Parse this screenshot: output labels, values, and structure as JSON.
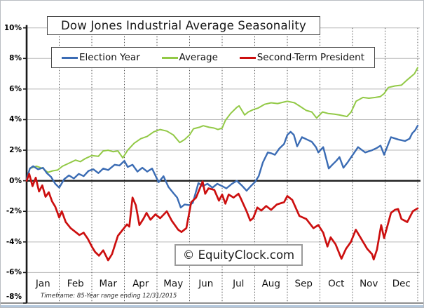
{
  "title": "Dow Jones Industrial Average Seasonality",
  "watermark": "© EquityClock.com",
  "footnote": "Timeframe: 85-Year range ending 12/31/2015",
  "chart_data": {
    "type": "line",
    "title": "Dow Jones Industrial Average Seasonality",
    "xlabel": "",
    "ylabel": "",
    "x_unit": "calendar months, 0 = Jan 1 through 12 = Dec 31",
    "months": [
      "Jan",
      "Feb",
      "Mar",
      "Apr",
      "May",
      "Jun",
      "Jul",
      "Aug",
      "Sep",
      "Oct",
      "Nov",
      "Dec"
    ],
    "ylim": [
      -8,
      10
    ],
    "y_ticks": [
      {
        "label": "10%",
        "value": 10
      },
      {
        "label": "8%",
        "value": 8
      },
      {
        "label": "6%",
        "value": 6
      },
      {
        "label": "4%",
        "value": 4
      },
      {
        "label": "2%",
        "value": 2
      },
      {
        "label": "0%",
        "value": 0
      },
      {
        "label": "-2%",
        "value": -2
      },
      {
        "label": "-4%",
        "value": -4
      },
      {
        "label": "-6%",
        "value": -6
      },
      {
        "label": "-8%",
        "value": -8
      }
    ],
    "grid_values": [
      10,
      8,
      6,
      4,
      2,
      -2,
      -4,
      -6
    ],
    "grid": "solid horizontal gridlines every 2%, dashed vertical gridlines at month boundaries, bold black line at 0%",
    "legend_position": "top",
    "series": [
      {
        "name": "Election Year",
        "color": "#3b6cb4",
        "points": [
          [
            0,
            0.1
          ],
          [
            0.1,
            0.8
          ],
          [
            0.2,
            0.95
          ],
          [
            0.35,
            0.75
          ],
          [
            0.5,
            0.85
          ],
          [
            0.62,
            0.5
          ],
          [
            0.75,
            0.25
          ],
          [
            0.88,
            -0.2
          ],
          [
            1,
            -0.45
          ],
          [
            1.15,
            0.1
          ],
          [
            1.3,
            0.35
          ],
          [
            1.45,
            0.15
          ],
          [
            1.6,
            0.45
          ],
          [
            1.75,
            0.3
          ],
          [
            1.9,
            0.65
          ],
          [
            2.05,
            0.75
          ],
          [
            2.2,
            0.5
          ],
          [
            2.35,
            0.8
          ],
          [
            2.5,
            0.7
          ],
          [
            2.7,
            1.05
          ],
          [
            2.85,
            1.0
          ],
          [
            3,
            1.3
          ],
          [
            3.1,
            0.9
          ],
          [
            3.25,
            1.05
          ],
          [
            3.4,
            0.6
          ],
          [
            3.55,
            0.85
          ],
          [
            3.7,
            0.6
          ],
          [
            3.85,
            0.8
          ],
          [
            3.95,
            0.35
          ],
          [
            4.05,
            -0.1
          ],
          [
            4.2,
            0.3
          ],
          [
            4.35,
            -0.4
          ],
          [
            4.5,
            -0.8
          ],
          [
            4.62,
            -1.1
          ],
          [
            4.73,
            -1.75
          ],
          [
            4.85,
            -1.55
          ],
          [
            5,
            -1.6
          ],
          [
            5.1,
            -1.45
          ],
          [
            5.27,
            -0.15
          ],
          [
            5.4,
            -0.35
          ],
          [
            5.55,
            -0.2
          ],
          [
            5.7,
            -0.45
          ],
          [
            5.85,
            -0.2
          ],
          [
            6,
            -0.35
          ],
          [
            6.13,
            -0.5
          ],
          [
            6.3,
            -0.2
          ],
          [
            6.45,
            0.0
          ],
          [
            6.6,
            -0.3
          ],
          [
            6.75,
            -0.65
          ],
          [
            6.9,
            -0.3
          ],
          [
            7,
            -0.1
          ],
          [
            7.12,
            0.3
          ],
          [
            7.25,
            1.2
          ],
          [
            7.4,
            1.85
          ],
          [
            7.5,
            1.8
          ],
          [
            7.62,
            1.7
          ],
          [
            7.75,
            2.1
          ],
          [
            7.9,
            2.4
          ],
          [
            8,
            3.0
          ],
          [
            8.1,
            3.2
          ],
          [
            8.2,
            3.0
          ],
          [
            8.3,
            2.25
          ],
          [
            8.45,
            2.85
          ],
          [
            8.6,
            2.7
          ],
          [
            8.75,
            2.55
          ],
          [
            8.88,
            2.2
          ],
          [
            8.95,
            1.85
          ],
          [
            9.1,
            2.2
          ],
          [
            9.27,
            0.8
          ],
          [
            9.38,
            1.05
          ],
          [
            9.5,
            1.3
          ],
          [
            9.6,
            1.55
          ],
          [
            9.72,
            0.85
          ],
          [
            9.85,
            1.2
          ],
          [
            9.96,
            1.55
          ],
          [
            10.17,
            2.2
          ],
          [
            10.39,
            1.85
          ],
          [
            10.6,
            2.0
          ],
          [
            10.75,
            2.15
          ],
          [
            10.86,
            2.3
          ],
          [
            10.97,
            1.7
          ],
          [
            11.18,
            2.85
          ],
          [
            11.4,
            2.7
          ],
          [
            11.61,
            2.6
          ],
          [
            11.75,
            2.75
          ],
          [
            11.83,
            3.1
          ],
          [
            11.92,
            3.3
          ],
          [
            12,
            3.6
          ]
        ]
      },
      {
        "name": "Average",
        "color": "#92c946",
        "points": [
          [
            0,
            0.1
          ],
          [
            0.1,
            0.8
          ],
          [
            0.3,
            0.95
          ],
          [
            0.5,
            0.8
          ],
          [
            0.65,
            0.55
          ],
          [
            0.8,
            0.65
          ],
          [
            0.95,
            0.7
          ],
          [
            1.1,
            0.95
          ],
          [
            1.35,
            1.2
          ],
          [
            1.5,
            1.35
          ],
          [
            1.65,
            1.25
          ],
          [
            1.8,
            1.45
          ],
          [
            2,
            1.65
          ],
          [
            2.2,
            1.6
          ],
          [
            2.35,
            1.95
          ],
          [
            2.5,
            2.0
          ],
          [
            2.65,
            1.9
          ],
          [
            2.8,
            1.95
          ],
          [
            2.95,
            1.5
          ],
          [
            3.1,
            2.0
          ],
          [
            3.3,
            2.45
          ],
          [
            3.5,
            2.75
          ],
          [
            3.7,
            2.9
          ],
          [
            3.9,
            3.2
          ],
          [
            4.1,
            3.35
          ],
          [
            4.3,
            3.25
          ],
          [
            4.5,
            3.0
          ],
          [
            4.7,
            2.5
          ],
          [
            4.85,
            2.7
          ],
          [
            5,
            3.0
          ],
          [
            5.12,
            3.4
          ],
          [
            5.3,
            3.5
          ],
          [
            5.42,
            3.6
          ],
          [
            5.6,
            3.5
          ],
          [
            5.75,
            3.45
          ],
          [
            5.87,
            3.35
          ],
          [
            6,
            3.45
          ],
          [
            6.1,
            3.95
          ],
          [
            6.26,
            4.4
          ],
          [
            6.45,
            4.8
          ],
          [
            6.52,
            4.9
          ],
          [
            6.69,
            4.3
          ],
          [
            6.8,
            4.5
          ],
          [
            6.95,
            4.65
          ],
          [
            7.1,
            4.75
          ],
          [
            7.3,
            5.0
          ],
          [
            7.5,
            5.1
          ],
          [
            7.7,
            5.05
          ],
          [
            7.9,
            5.15
          ],
          [
            8,
            5.2
          ],
          [
            8.22,
            5.1
          ],
          [
            8.4,
            4.85
          ],
          [
            8.58,
            4.6
          ],
          [
            8.75,
            4.5
          ],
          [
            8.9,
            4.1
          ],
          [
            9.08,
            4.5
          ],
          [
            9.25,
            4.4
          ],
          [
            9.45,
            4.35
          ],
          [
            9.6,
            4.3
          ],
          [
            9.83,
            4.2
          ],
          [
            9.96,
            4.5
          ],
          [
            10.11,
            5.2
          ],
          [
            10.32,
            5.45
          ],
          [
            10.5,
            5.4
          ],
          [
            10.7,
            5.45
          ],
          [
            10.85,
            5.5
          ],
          [
            10.97,
            5.7
          ],
          [
            11.1,
            6.1
          ],
          [
            11.3,
            6.2
          ],
          [
            11.5,
            6.25
          ],
          [
            11.68,
            6.6
          ],
          [
            11.9,
            7.0
          ],
          [
            12,
            7.4
          ]
        ]
      },
      {
        "name": "Second-Term President",
        "color": "#cc0f0f",
        "points": [
          [
            0,
            0.0
          ],
          [
            0.08,
            0.45
          ],
          [
            0.18,
            -0.35
          ],
          [
            0.28,
            0.2
          ],
          [
            0.38,
            -0.7
          ],
          [
            0.48,
            -0.3
          ],
          [
            0.58,
            -1.05
          ],
          [
            0.68,
            -0.75
          ],
          [
            0.78,
            -1.35
          ],
          [
            0.88,
            -1.7
          ],
          [
            1,
            -2.4
          ],
          [
            1.08,
            -2.0
          ],
          [
            1.2,
            -2.7
          ],
          [
            1.35,
            -3.1
          ],
          [
            1.5,
            -3.35
          ],
          [
            1.62,
            -3.55
          ],
          [
            1.75,
            -3.4
          ],
          [
            1.88,
            -3.8
          ],
          [
            2,
            -4.3
          ],
          [
            2.1,
            -4.65
          ],
          [
            2.22,
            -4.9
          ],
          [
            2.35,
            -4.55
          ],
          [
            2.5,
            -5.2
          ],
          [
            2.62,
            -4.8
          ],
          [
            2.8,
            -3.6
          ],
          [
            2.95,
            -3.2
          ],
          [
            3.08,
            -2.85
          ],
          [
            3.15,
            -3.0
          ],
          [
            3.25,
            -1.1
          ],
          [
            3.35,
            -1.6
          ],
          [
            3.46,
            -2.9
          ],
          [
            3.58,
            -2.5
          ],
          [
            3.68,
            -2.1
          ],
          [
            3.8,
            -2.55
          ],
          [
            3.95,
            -2.2
          ],
          [
            4.1,
            -2.45
          ],
          [
            4.3,
            -2.0
          ],
          [
            4.45,
            -2.6
          ],
          [
            4.65,
            -3.2
          ],
          [
            4.75,
            -3.35
          ],
          [
            4.9,
            -3.1
          ],
          [
            5.05,
            -1.4
          ],
          [
            5.2,
            -1.1
          ],
          [
            5.4,
            -0.05
          ],
          [
            5.48,
            -0.85
          ],
          [
            5.58,
            -0.5
          ],
          [
            5.76,
            -0.6
          ],
          [
            5.9,
            -1.3
          ],
          [
            6,
            -0.9
          ],
          [
            6.1,
            -1.5
          ],
          [
            6.2,
            -0.9
          ],
          [
            6.35,
            -1.1
          ],
          [
            6.5,
            -0.85
          ],
          [
            6.56,
            -1.1
          ],
          [
            6.75,
            -2.0
          ],
          [
            6.86,
            -2.6
          ],
          [
            6.95,
            -2.45
          ],
          [
            7.08,
            -1.75
          ],
          [
            7.2,
            -1.95
          ],
          [
            7.35,
            -1.65
          ],
          [
            7.5,
            -1.9
          ],
          [
            7.68,
            -1.55
          ],
          [
            7.9,
            -1.4
          ],
          [
            8,
            -1.0
          ],
          [
            8.15,
            -1.25
          ],
          [
            8.37,
            -2.3
          ],
          [
            8.58,
            -2.5
          ],
          [
            8.8,
            -3.1
          ],
          [
            8.95,
            -2.9
          ],
          [
            9.1,
            -3.4
          ],
          [
            9.23,
            -4.3
          ],
          [
            9.33,
            -3.7
          ],
          [
            9.48,
            -4.15
          ],
          [
            9.66,
            -5.1
          ],
          [
            9.8,
            -4.45
          ],
          [
            9.95,
            -4.0
          ],
          [
            10.1,
            -3.2
          ],
          [
            10.24,
            -3.7
          ],
          [
            10.45,
            -4.45
          ],
          [
            10.6,
            -4.8
          ],
          [
            10.65,
            -5.15
          ],
          [
            10.75,
            -4.5
          ],
          [
            10.88,
            -2.9
          ],
          [
            10.97,
            -3.75
          ],
          [
            11.18,
            -2.1
          ],
          [
            11.3,
            -1.9
          ],
          [
            11.4,
            -1.85
          ],
          [
            11.5,
            -2.5
          ],
          [
            11.68,
            -2.7
          ],
          [
            11.85,
            -2.0
          ],
          [
            12,
            -1.8
          ]
        ]
      }
    ]
  },
  "colors": {
    "election_year": "#3b6cb4",
    "average": "#92c946",
    "second_term": "#cc0f0f",
    "gridline": "#b9b9b9",
    "axis": "#1a1a1a"
  }
}
